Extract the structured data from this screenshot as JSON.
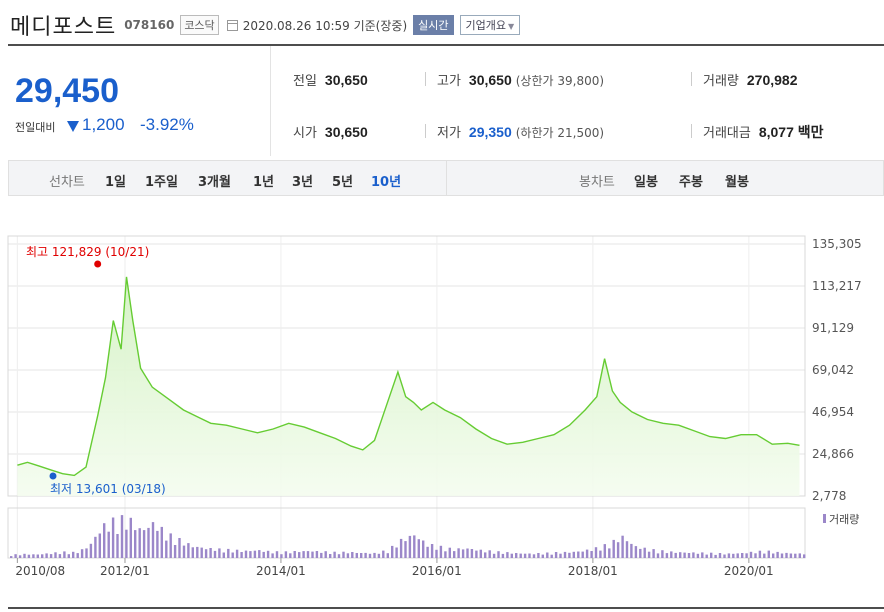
{
  "header": {
    "stock_name": "메디포스트",
    "stock_code": "078160",
    "market": "코스닥",
    "datetime": "2020.08.26 10:59 기준(장중)",
    "realtime_label": "실시간",
    "company_info_label": "기업개요"
  },
  "price": {
    "current": "29,450",
    "change_label": "전일대비",
    "change_value": "1,200",
    "change_pct": "-3.92%",
    "direction": "down"
  },
  "stats": {
    "prev_close_label": "전일",
    "prev_close": "30,650",
    "high_label": "고가",
    "high": "30,650",
    "upper_limit": "(상한가 39,800)",
    "volume_label": "거래량",
    "volume": "270,982",
    "open_label": "시가",
    "open": "30,650",
    "low_label": "저가",
    "low": "29,350",
    "lower_limit": "(하한가 21,500)",
    "amount_label": "거래대금",
    "amount": "8,077 백만"
  },
  "period_bar": {
    "line_label": "선차트",
    "line_periods": [
      "1일",
      "1주일",
      "3개월",
      "1년",
      "3년",
      "5년",
      "10년"
    ],
    "active_period": "10년",
    "candle_label": "봉차트",
    "candle_periods": [
      "일봉",
      "주봉",
      "월봉"
    ]
  },
  "colors": {
    "accent_blue": "#1a5fcc",
    "line_green": "#66cc33",
    "area_green": "#d4f2c4",
    "volume_purple": "#9b87c9",
    "high_red": "#e00000"
  },
  "chart_data": {
    "type": "area",
    "period": "10년",
    "y_ticks": [
      "135,305",
      "113,217",
      "91,129",
      "69,042",
      "46,954",
      "24,866",
      "2,778"
    ],
    "ylim": [
      2778,
      135305
    ],
    "x_ticks": [
      "2010/08",
      "2012/01",
      "2014/01",
      "2016/01",
      "2018/01",
      "2020/01"
    ],
    "max_annotation": "최고 121,829 (10/21)",
    "min_annotation": "최저 13,601 (03/18)",
    "volume_legend": "거래량",
    "grid": true,
    "series": [
      {
        "x": [
          2010.62,
          2010.75,
          2010.9,
          2011.05,
          2011.2,
          2011.35,
          2011.5,
          2011.65,
          2011.75,
          2011.85,
          2011.95,
          2012.02,
          2012.1,
          2012.2,
          2012.35,
          2012.55,
          2012.75,
          2012.95,
          2013.1,
          2013.3,
          2013.5,
          2013.7,
          2013.9,
          2014.1,
          2014.3,
          2014.5,
          2014.7,
          2014.9,
          2015.05,
          2015.2,
          2015.35,
          2015.5,
          2015.6,
          2015.7,
          2015.8,
          2015.95,
          2016.1,
          2016.3,
          2016.5,
          2016.7,
          2016.9,
          2017.1,
          2017.3,
          2017.5,
          2017.7,
          2017.9,
          2018.05,
          2018.15,
          2018.25,
          2018.35,
          2018.5,
          2018.7,
          2018.9,
          2019.1,
          2019.3,
          2019.5,
          2019.7,
          2019.9,
          2020.1,
          2020.3,
          2020.5,
          2020.65
        ],
        "y": [
          19000,
          20500,
          18500,
          16500,
          14500,
          13601,
          18000,
          45000,
          65000,
          95000,
          80000,
          118000,
          95000,
          70000,
          60000,
          54000,
          48000,
          44000,
          41000,
          40000,
          38000,
          36000,
          38000,
          41000,
          39000,
          36000,
          33000,
          29000,
          27000,
          32000,
          50000,
          68000,
          55000,
          52000,
          48000,
          52000,
          48000,
          44000,
          38000,
          33000,
          30000,
          31000,
          33000,
          35000,
          40000,
          48000,
          55000,
          75000,
          58000,
          52000,
          47000,
          43000,
          41000,
          40000,
          37000,
          34000,
          33000,
          35000,
          35000,
          30000,
          30500,
          29450
        ]
      }
    ],
    "volume": [
      8,
      10,
      9,
      12,
      15,
      14,
      30,
      80,
      95,
      100,
      70,
      90,
      60,
      45,
      30,
      25,
      22,
      20,
      18,
      20,
      16,
      15,
      17,
      18,
      16,
      14,
      15,
      13,
      12,
      20,
      45,
      60,
      35,
      28,
      22,
      25,
      20,
      17,
      14,
      12,
      11,
      12,
      14,
      15,
      18,
      25,
      35,
      55,
      30,
      22,
      18,
      15,
      14,
      13,
      12,
      11,
      12,
      15,
      18,
      14,
      12,
      11
    ]
  }
}
